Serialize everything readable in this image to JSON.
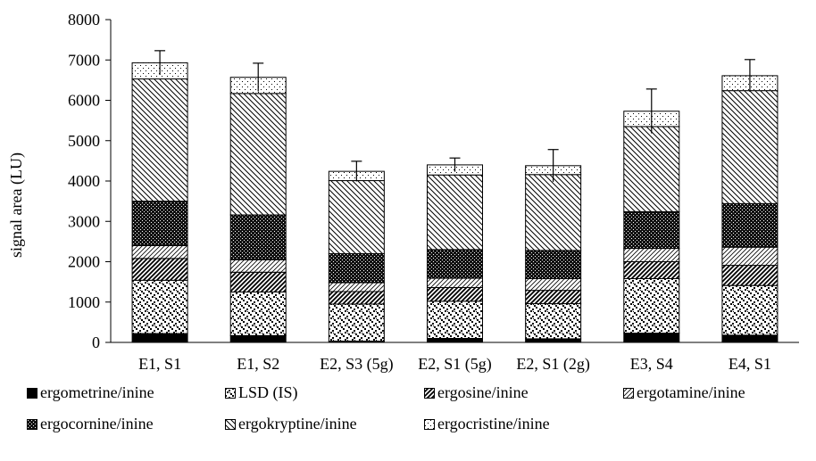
{
  "chart_data": {
    "type": "bar",
    "stacked": true,
    "ylabel": "signal area (LU)",
    "ylim": [
      0,
      8000
    ],
    "yticks": [
      "0",
      "1000",
      "2000",
      "3000",
      "4000",
      "5000",
      "6000",
      "7000",
      "8000"
    ],
    "categories": [
      "E1, S1",
      "E1, S2",
      "E2, S3 (5g)",
      "E2, S1 (5g)",
      "E2, S1 (2g)",
      "E3, S4",
      "E4, S1"
    ],
    "series": [
      {
        "name": "ergometrine/inine",
        "pattern": "solid",
        "values": [
          220,
          170,
          30,
          100,
          90,
          230,
          180
        ]
      },
      {
        "name": "LSD (IS)",
        "pattern": "checker",
        "values": [
          1320,
          1080,
          920,
          920,
          870,
          1350,
          1230
        ]
      },
      {
        "name": "ergosine/inine",
        "pattern": "diag-dense",
        "values": [
          540,
          490,
          310,
          340,
          330,
          420,
          500
        ]
      },
      {
        "name": "ergotamine/inine",
        "pattern": "diag-light",
        "values": [
          320,
          310,
          220,
          230,
          290,
          330,
          450
        ]
      },
      {
        "name": "ergocornine/inine",
        "pattern": "dark-dots",
        "values": [
          1100,
          1110,
          720,
          710,
          700,
          910,
          1080
        ]
      },
      {
        "name": "ergokryptine/inine",
        "pattern": "back-diag",
        "values": [
          3030,
          3010,
          1810,
          1850,
          1880,
          2110,
          2800
        ]
      },
      {
        "name": "ergocristine/inine",
        "pattern": "light-dots",
        "values": [
          400,
          400,
          230,
          250,
          220,
          380,
          370
        ]
      }
    ],
    "error_bars": [
      300,
      350,
      250,
      170,
      400,
      550,
      400
    ],
    "legend_position": "bottom",
    "grid": false
  }
}
